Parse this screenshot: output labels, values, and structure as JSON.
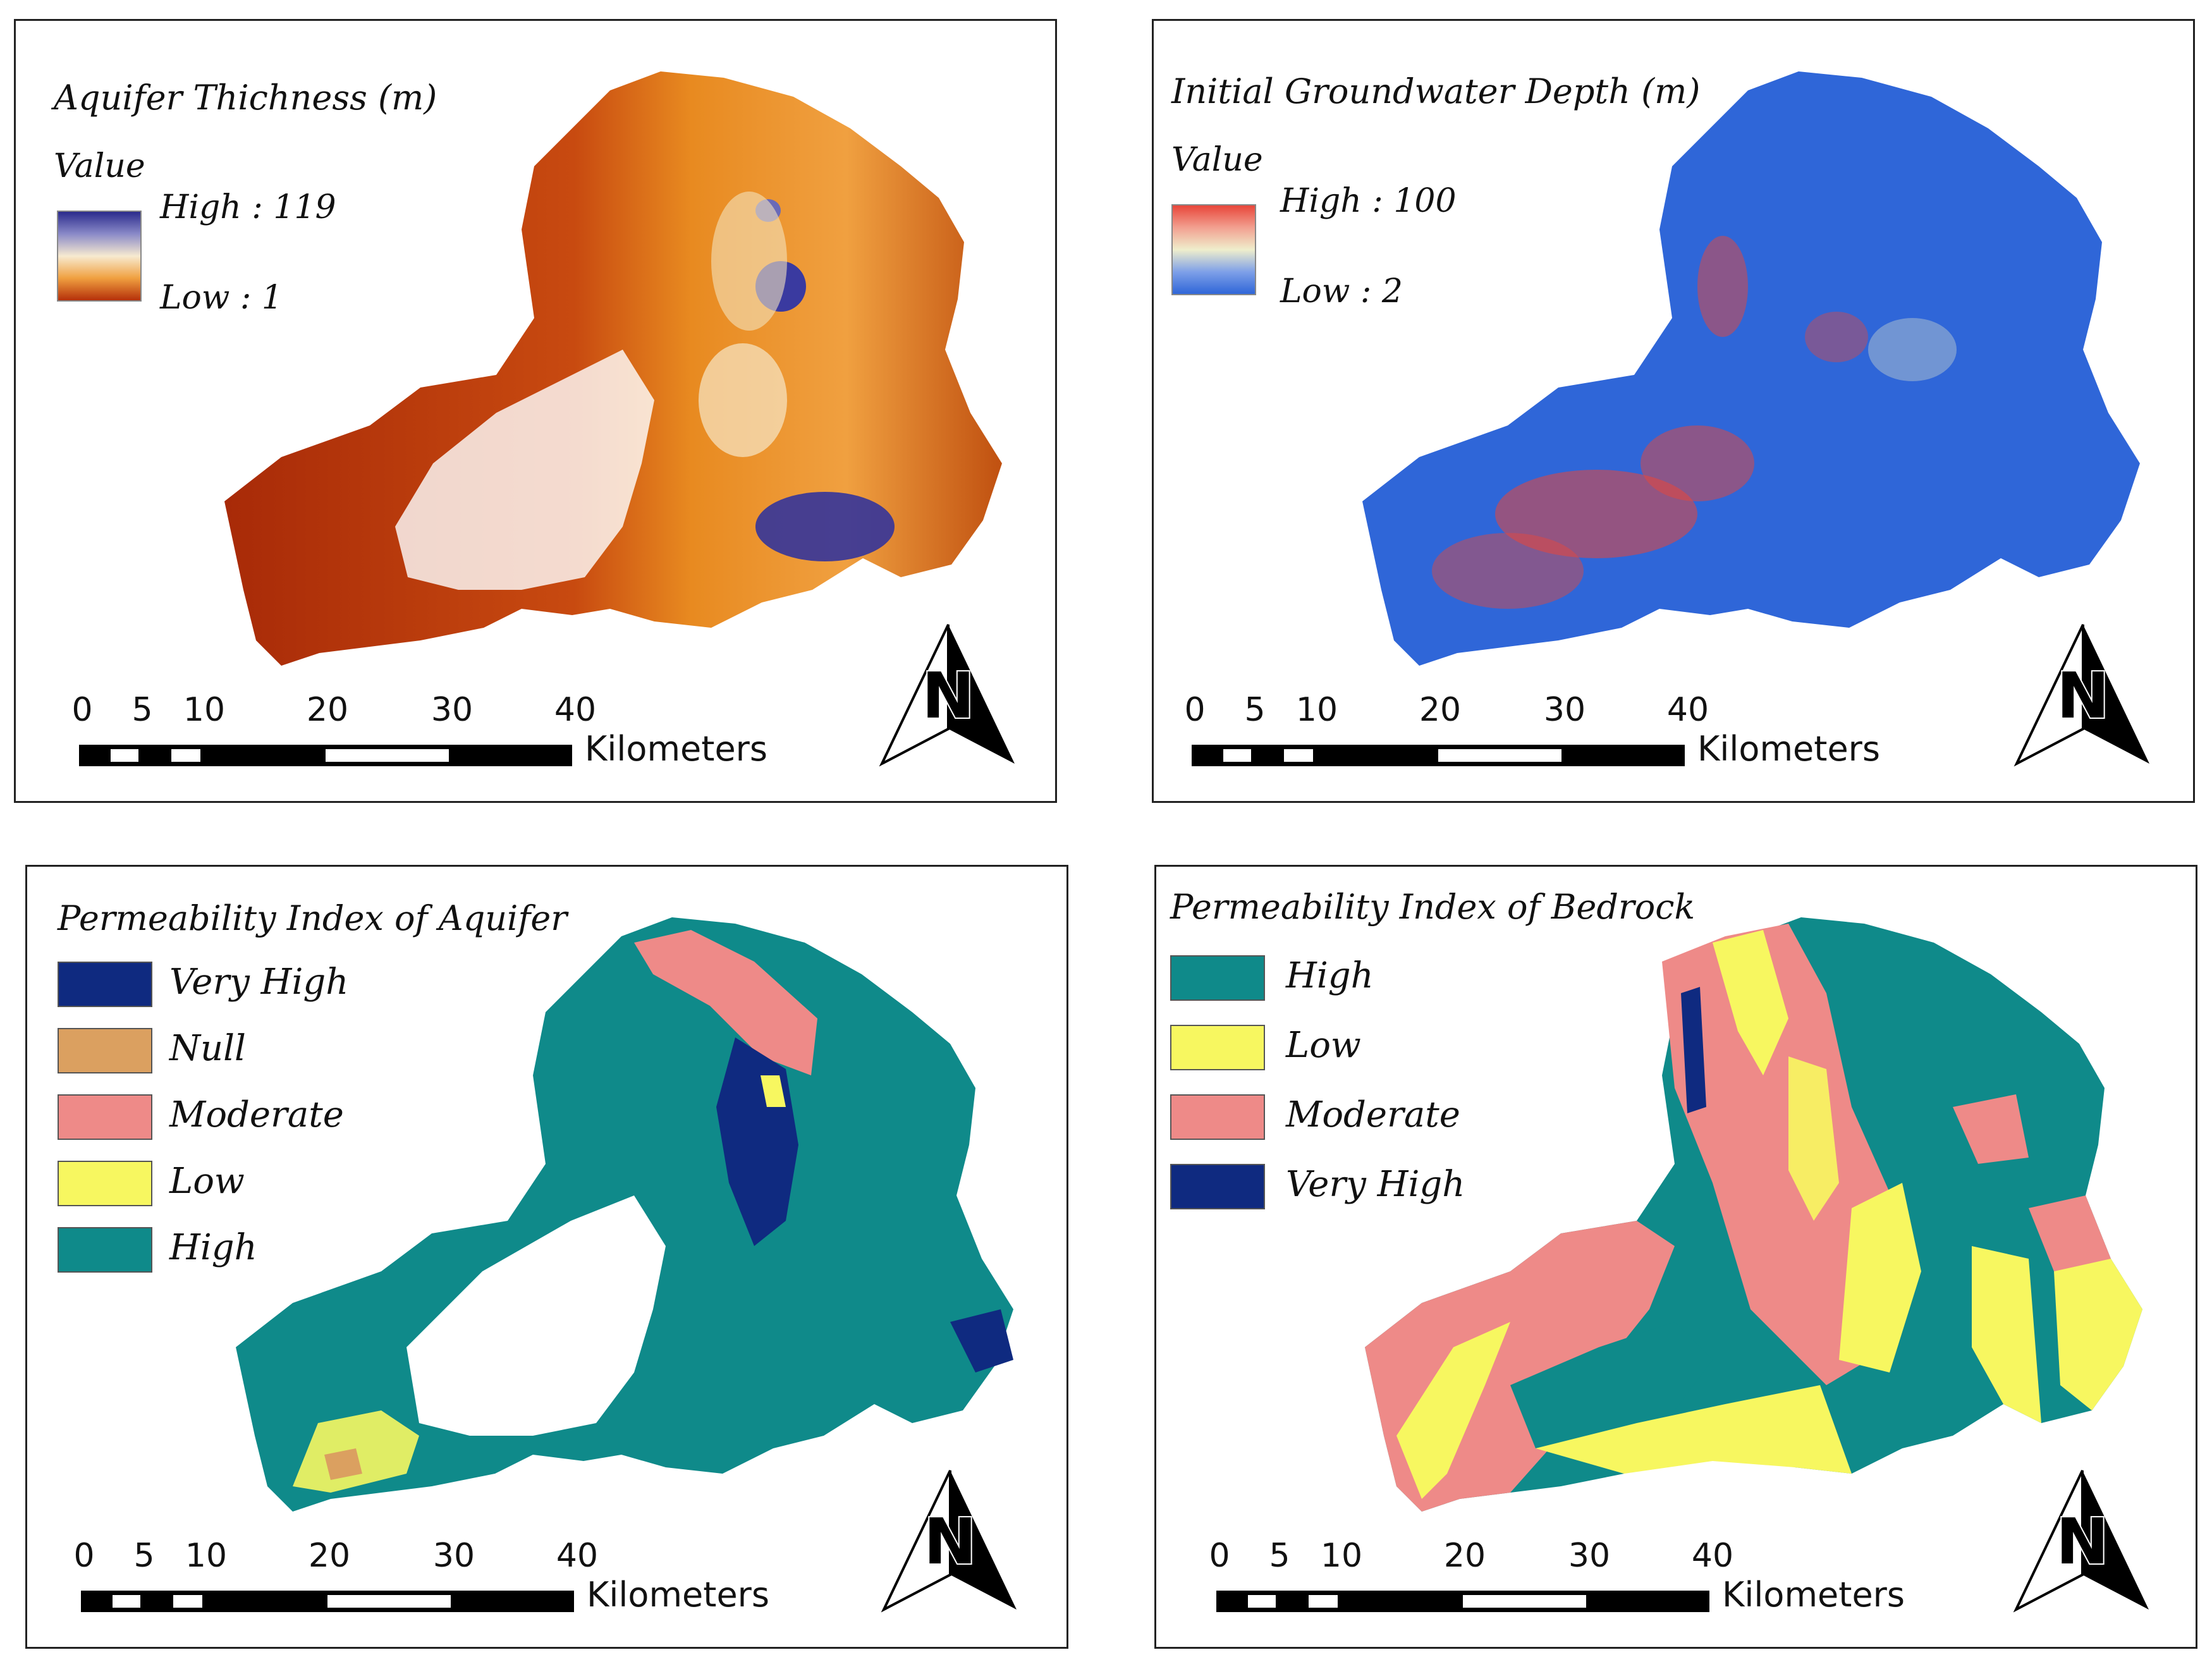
{
  "colors": {
    "thickness_high": "#2b2b8c",
    "thickness_mid": "#f7ead0",
    "thickness_low": "#b5300a",
    "gw_high": "#e8463a",
    "gw_mid": "#efeecc",
    "gw_low": "#2f66d8",
    "very_high": "#0f2a80",
    "null": "#dba060",
    "moderate": "#ee8a88",
    "low": "#f7f760",
    "high": "#0f8a8a"
  },
  "panels": {
    "thickness": {
      "title": "Aquifer Thichness (m)",
      "value_label": "Value",
      "high_label": "High : 119",
      "low_label": "Low : 1"
    },
    "groundwater": {
      "title": "Initial Groundwater Depth (m)",
      "value_label": "Value",
      "high_label": "High : 100",
      "low_label": "Low : 2"
    },
    "perm_aquifer": {
      "title": "Permeability Index of Aquifer",
      "classes": [
        "Very High",
        "Null",
        "Moderate",
        "Low",
        "High"
      ]
    },
    "perm_bedrock": {
      "title": "Permeability Index of Bedrock",
      "classes": [
        "High",
        "Low",
        "Moderate",
        "Very High"
      ]
    }
  },
  "scalebar": {
    "ticks": [
      "0",
      "5",
      "10",
      "20",
      "30",
      "40"
    ],
    "unit": "Kilometers"
  },
  "north_arrow": {
    "letter": "N",
    "icon": "north-arrow-icon"
  }
}
